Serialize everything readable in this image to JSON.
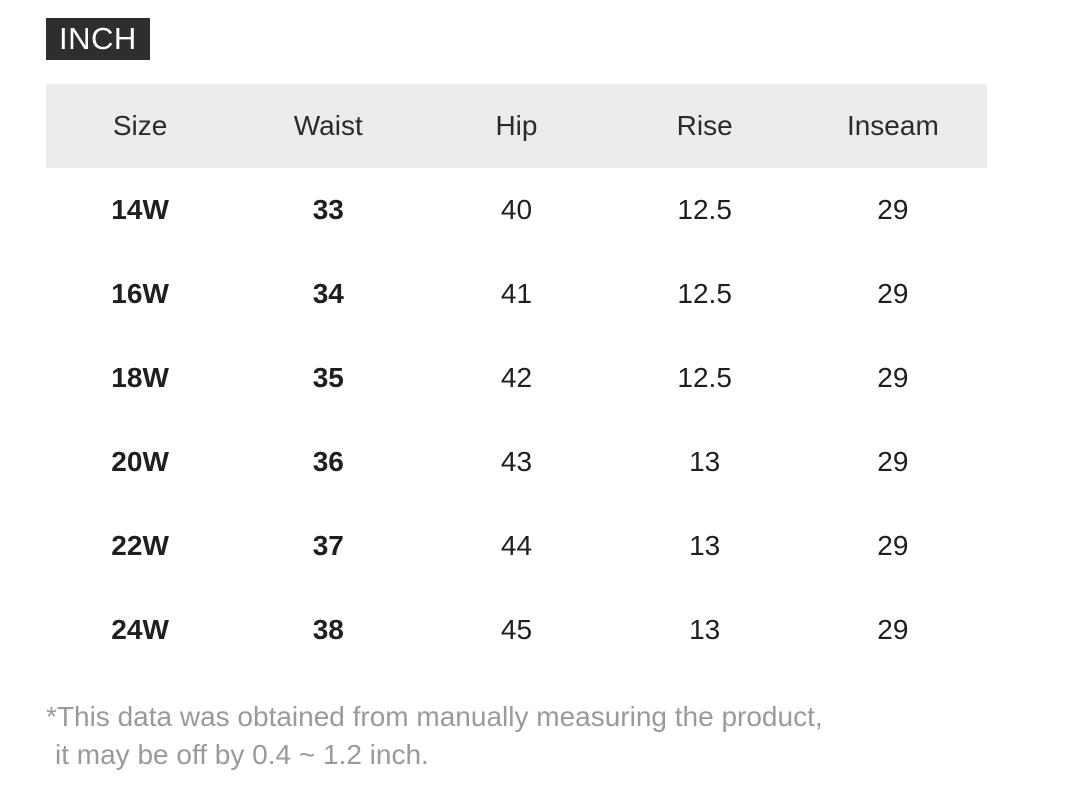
{
  "unit_badge": {
    "label": "INCH"
  },
  "table": {
    "columns": [
      "Size",
      "Waist",
      "Hip",
      "Rise",
      "Inseam"
    ],
    "rows": [
      [
        "14W",
        "33",
        "40",
        "12.5",
        "29"
      ],
      [
        "16W",
        "34",
        "41",
        "12.5",
        "29"
      ],
      [
        "18W",
        "35",
        "42",
        "12.5",
        "29"
      ],
      [
        "20W",
        "36",
        "43",
        "13",
        "29"
      ],
      [
        "22W",
        "37",
        "44",
        "13",
        "29"
      ],
      [
        "24W",
        "38",
        "45",
        "13",
        "29"
      ]
    ]
  },
  "footnote": {
    "line1": "*This data was obtained from manually measuring the product,",
    "line2": "it may be off by 0.4 ~ 1.2 inch."
  },
  "colors": {
    "badge_bg": "#2e2e2e",
    "badge_text": "#ffffff",
    "header_row_bg": "#ececec",
    "body_text": "#1f1f1f",
    "footnote_text": "#9a9a9a",
    "page_bg": "#ffffff"
  }
}
